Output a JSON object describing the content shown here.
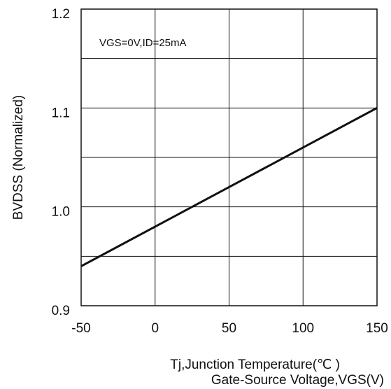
{
  "chart_data": {
    "type": "line",
    "title": "",
    "xlabel": "Tj,Junction Temperature(℃ )",
    "xlabel2": "Gate-Source Voltage,VGS(V)",
    "ylabel": "BVDSS (Normalized)",
    "xlim": [
      -50,
      150
    ],
    "ylim": [
      0.9,
      1.2
    ],
    "x_ticks": [
      -50,
      0,
      50,
      100,
      150
    ],
    "x_tick_labels": [
      "-50",
      "0",
      "50",
      "100",
      "150"
    ],
    "y_ticks": [
      0.9,
      1.0,
      1.1,
      1.2
    ],
    "y_tick_labels": [
      "0.9",
      "1.0",
      "1.1",
      "1.2"
    ],
    "y_gridlines": [
      0.9,
      0.95,
      1.0,
      1.05,
      1.1,
      1.15,
      1.2
    ],
    "grid": true,
    "annotation": "VGS=0V,ID=25mA",
    "line_color": "#111111",
    "series": [
      {
        "x": [
          -50,
          150
        ],
        "y": [
          0.94,
          1.1
        ]
      }
    ]
  }
}
